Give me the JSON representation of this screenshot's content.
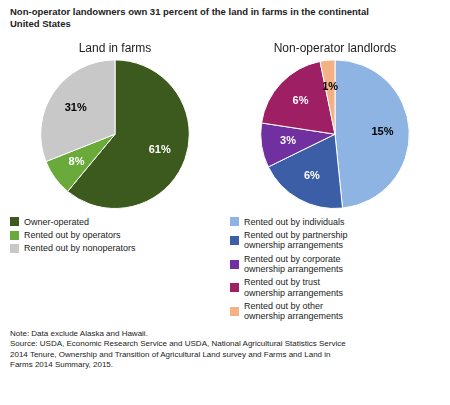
{
  "title": "Non-operator landowners own 31 percent of the land in farms in the continental\nUnited States",
  "annotations": [
    "Note: Data exclude Alaska and Hawaii.\nSource: USDA, Economic Research Service and USDA, National Agricultural Statistics Service\n2014 Tenure, Ownership and Transition of Agricultural Land survey and Farms and Land in\nFarms 2014 Summary, 2015."
  ],
  "chart_data": [
    {
      "type": "pie",
      "title": "Land in farms",
      "categories": [
        "Owner-operated",
        "Rented out by operators",
        "Rented out by nonoperators"
      ],
      "values": [
        61,
        8,
        31
      ],
      "value_labels": [
        "61%",
        "8%",
        "31%"
      ],
      "colors": [
        "#3d5a1e",
        "#6aaa3a",
        "#c8c8c8"
      ],
      "data_labels": true,
      "legend": "bottom"
    },
    {
      "type": "pie",
      "title": "Non-operator landlords",
      "categories": [
        "Rented out by individuals",
        "Rented out by partnership\nownership arrangements",
        "Rented out by corporate\nownership arrangements",
        "Rented out by trust\nownership arrangements",
        "Rented out by other\nownership arrangements"
      ],
      "values": [
        15,
        6,
        3,
        6,
        1
      ],
      "value_labels": [
        "15%",
        "6%",
        "3%",
        "6%",
        "1%"
      ],
      "colors": [
        "#8eb4e3",
        "#3b5ea6",
        "#7030a0",
        "#9e1f63",
        "#f4b183"
      ],
      "data_labels": true,
      "legend": "bottom"
    }
  ]
}
